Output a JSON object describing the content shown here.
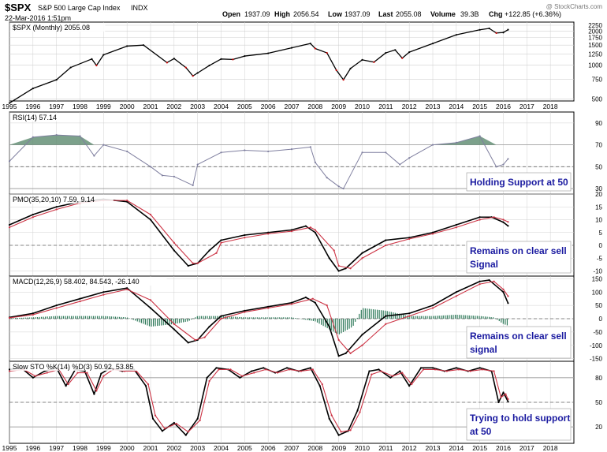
{
  "header": {
    "symbol": "$SPX",
    "name": "S&P 500 Large Cap Index",
    "exchange": "INDX",
    "datetime": "22-Mar-2016 1:51pm",
    "quote": {
      "open_label": "Open",
      "open": "1937.09",
      "high_label": "High",
      "high": "2056.54",
      "low_label": "Low",
      "low": "1937.09",
      "last_label": "Last",
      "last": "2055.08",
      "volume_label": "Volume",
      "volume": "39.3B",
      "chg_label": "Chg",
      "chg": "+122.85 (+6.36%)"
    },
    "watermark": "@ StockCharts.com"
  },
  "x_axis": {
    "years": [
      "1995",
      "1996",
      "1997",
      "1998",
      "1999",
      "2000",
      "2001",
      "2002",
      "2003",
      "2004",
      "2005",
      "2006",
      "2007",
      "2008",
      "2009",
      "2010",
      "2011",
      "2012",
      "2013",
      "2014",
      "2015",
      "2016",
      "2017",
      "2018"
    ]
  },
  "chart_data": [
    {
      "type": "line",
      "title": "$SPX (Monthly) 2055.08",
      "scale": "log",
      "ylim": [
        480,
        2400
      ],
      "yticks": [
        500,
        750,
        1000,
        1250,
        1500,
        1750,
        2000,
        2250
      ],
      "series": [
        {
          "name": "$SPX (Monthly)",
          "x": [
            1995,
            1996,
            1997,
            1997.6,
            1998.5,
            1998.7,
            1999,
            2000,
            2000.7,
            2001.7,
            2002,
            2002.5,
            2002.8,
            2003,
            2003.5,
            2004,
            2004.5,
            2005,
            2006,
            2007,
            2007.8,
            2008,
            2008.5,
            2008.9,
            2009.2,
            2009.5,
            2010,
            2010.5,
            2011,
            2011.4,
            2011.7,
            2012,
            2013,
            2014,
            2015,
            2015.4,
            2015.7,
            2016,
            2016.2
          ],
          "y": [
            460,
            620,
            740,
            950,
            1130,
            990,
            1230,
            1470,
            1500,
            1050,
            1140,
            950,
            800,
            850,
            990,
            1130,
            1120,
            1200,
            1270,
            1420,
            1550,
            1400,
            1280,
            900,
            740,
            930,
            1110,
            1060,
            1280,
            1360,
            1150,
            1300,
            1550,
            1850,
            2050,
            2110,
            1920,
            1940,
            2055
          ]
        }
      ]
    },
    {
      "type": "line",
      "title": "RSI(14) 57.14",
      "ylim": [
        25,
        100
      ],
      "yticks": [
        30,
        50,
        70,
        90
      ],
      "series": [
        {
          "name": "RSI(14)",
          "x": [
            1995,
            1996,
            1997,
            1998,
            1998.6,
            1999,
            2000,
            2001,
            2001.5,
            2002,
            2002.8,
            2003,
            2004,
            2005,
            2006,
            2007,
            2007.8,
            2008,
            2008.5,
            2009,
            2009.2,
            2010,
            2011,
            2011.6,
            2012,
            2013,
            2014,
            2015,
            2015.7,
            2016,
            2016.2
          ],
          "y": [
            55,
            77,
            79,
            78,
            60,
            70,
            64,
            50,
            42,
            41,
            33,
            52,
            63,
            65,
            64,
            66,
            68,
            54,
            40,
            32,
            30,
            63,
            63,
            52,
            58,
            70,
            72,
            78,
            50,
            52,
            57.14
          ]
        }
      ],
      "annotation": "Holding Support at 50"
    },
    {
      "type": "line",
      "title": "PMO(35,20,10) 7.59, 9.14",
      "ylim": [
        -12,
        20
      ],
      "yticks": [
        -10,
        -5,
        0,
        5,
        10,
        15,
        20
      ],
      "series": [
        {
          "name": "PMO(35,20,10) 7.59",
          "x": [
            1995,
            1996,
            1997,
            1998,
            1999,
            2000,
            2001,
            2002,
            2002.6,
            2003,
            2003.5,
            2004,
            2005,
            2006,
            2007,
            2007.6,
            2008,
            2008.6,
            2009,
            2009.3,
            2010,
            2011,
            2012,
            2013,
            2014,
            2015,
            2015.5,
            2016,
            2016.2
          ],
          "y": [
            8,
            12,
            15,
            17,
            18,
            17,
            10,
            -2,
            -8,
            -7,
            -2,
            2,
            4,
            5,
            6,
            7.5,
            5,
            -5,
            -10,
            -9,
            -3,
            2,
            3,
            5,
            8,
            11,
            11,
            9,
            7.59
          ]
        },
        {
          "name": "9.14",
          "x": [
            1995,
            1996,
            1997,
            1998,
            1999,
            2000,
            2001,
            2002,
            2002.8,
            2003,
            2003.8,
            2004,
            2005,
            2006,
            2007,
            2007.8,
            2008,
            2008.8,
            2009,
            2009.5,
            2010,
            2011,
            2012,
            2013,
            2014,
            2015,
            2015.6,
            2016,
            2016.2
          ],
          "y": [
            7,
            11,
            14,
            16.5,
            17.5,
            17.5,
            12,
            1,
            -7,
            -7,
            -3,
            1,
            3,
            4.5,
            5.5,
            7,
            6,
            -2,
            -8,
            -9,
            -5,
            0,
            2.5,
            4.5,
            7,
            10,
            11,
            10,
            9.14
          ]
        }
      ],
      "annotation": "Remains on clear sell Signal"
    },
    {
      "type": "line",
      "title": "MACD(12,26,9) 58.402, 84.543, -26.140",
      "ylim": [
        -160,
        160
      ],
      "yticks": [
        -150,
        -100,
        -50,
        0,
        50,
        100,
        150
      ],
      "series": [
        {
          "name": "MACD(12,26,9) 58.402",
          "x": [
            1995,
            1996,
            1997,
            1998,
            1999,
            2000,
            2001,
            2002,
            2002.6,
            2003,
            2003.5,
            2004,
            2005,
            2006,
            2007,
            2007.6,
            2008,
            2008.6,
            2009,
            2009.3,
            2010,
            2011,
            2012,
            2013,
            2014,
            2015,
            2015.4,
            2016,
            2016.2
          ],
          "y": [
            5,
            20,
            50,
            75,
            100,
            115,
            40,
            -40,
            -90,
            -80,
            -30,
            10,
            30,
            45,
            60,
            80,
            60,
            -30,
            -140,
            -130,
            -60,
            10,
            20,
            50,
            100,
            140,
            145,
            100,
            58.402
          ]
        },
        {
          "name": "84.543",
          "x": [
            1995,
            1996,
            1997,
            1998,
            1999,
            2000,
            2001,
            2002,
            2002.9,
            2003.3,
            2004,
            2005,
            2006,
            2007,
            2007.9,
            2008.5,
            2009,
            2009.5,
            2010,
            2011,
            2012,
            2013,
            2014,
            2015,
            2015.6,
            2016,
            2016.2
          ],
          "y": [
            3,
            15,
            40,
            65,
            90,
            110,
            70,
            -20,
            -80,
            -70,
            0,
            25,
            40,
            55,
            75,
            50,
            -80,
            -130,
            -100,
            -20,
            10,
            40,
            85,
            130,
            140,
            110,
            84.543
          ]
        },
        {
          "name": "-26.140",
          "x": [
            1995,
            1996,
            1997,
            1998,
            1999,
            2000,
            2001,
            2002,
            2002.6,
            2003,
            2004,
            2005,
            2006,
            2007,
            2008,
            2009,
            2009.6,
            2010,
            2011,
            2012,
            2013,
            2014,
            2015,
            2015.6,
            2016,
            2016.2
          ],
          "y": [
            2,
            5,
            10,
            10,
            10,
            5,
            -30,
            -20,
            -10,
            10,
            10,
            5,
            5,
            5,
            -10,
            -60,
            -30,
            40,
            30,
            10,
            10,
            15,
            10,
            5,
            -20,
            -26.14
          ]
        }
      ],
      "annotation": "Remains on clear sell signal"
    },
    {
      "type": "line",
      "title": "Slow STO %K(14) %D(3) 50.92, 53.85",
      "ylim": [
        0,
        100
      ],
      "yticks": [
        20,
        50,
        80
      ],
      "series": [
        {
          "name": "Slow STO %K(14) 50.92",
          "x": [
            1995,
            1995.5,
            1996,
            1996.5,
            1997,
            1997.4,
            1997.8,
            1998.2,
            1998.6,
            1998.9,
            1999.3,
            1999.8,
            2000.3,
            2000.8,
            2001.1,
            2001.5,
            2002,
            2002.5,
            2003,
            2003.4,
            2003.8,
            2004.3,
            2004.8,
            2005.3,
            2005.8,
            2006.3,
            2006.8,
            2007.3,
            2007.8,
            2008.2,
            2008.6,
            2009,
            2009.4,
            2009.8,
            2010.3,
            2010.7,
            2011.2,
            2011.6,
            2012,
            2012.5,
            2013,
            2013.5,
            2014,
            2014.5,
            2015,
            2015.5,
            2015.8,
            2016,
            2016.2
          ],
          "y": [
            90,
            92,
            80,
            88,
            92,
            70,
            90,
            88,
            60,
            85,
            92,
            88,
            90,
            70,
            30,
            15,
            25,
            10,
            30,
            80,
            92,
            90,
            80,
            88,
            92,
            86,
            92,
            88,
            92,
            70,
            30,
            10,
            15,
            40,
            88,
            90,
            80,
            88,
            70,
            92,
            92,
            88,
            92,
            88,
            92,
            88,
            50,
            62,
            50.92
          ]
        },
        {
          "name": "53.85",
          "x": [
            1995,
            1995.6,
            1996.1,
            1996.6,
            1997.1,
            1997.5,
            1997.9,
            1998.3,
            1998.7,
            1999,
            1999.4,
            1999.9,
            2000.4,
            2000.9,
            2001.2,
            2001.6,
            2002.1,
            2002.6,
            2003.1,
            2003.5,
            2003.9,
            2004.4,
            2004.9,
            2005.4,
            2005.9,
            2006.4,
            2006.9,
            2007.4,
            2007.9,
            2008.3,
            2008.7,
            2009.1,
            2009.5,
            2009.9,
            2010.4,
            2010.8,
            2011.3,
            2011.7,
            2012.1,
            2012.6,
            2013.1,
            2013.6,
            2014.1,
            2014.6,
            2015.1,
            2015.6,
            2015.9,
            2016.1,
            2016.2
          ],
          "y": [
            88,
            90,
            82,
            86,
            90,
            72,
            86,
            86,
            64,
            82,
            90,
            88,
            88,
            72,
            34,
            18,
            24,
            14,
            28,
            76,
            90,
            90,
            82,
            86,
            90,
            86,
            90,
            88,
            90,
            72,
            34,
            14,
            16,
            38,
            84,
            88,
            82,
            86,
            72,
            90,
            90,
            88,
            90,
            88,
            90,
            88,
            56,
            60,
            53.85
          ]
        }
      ],
      "annotation": "Trying to hold support at 50"
    }
  ],
  "colors": {
    "price_up": "#000000",
    "price_down": "#cc0000",
    "rsi_line": "#7f7f9f",
    "rsi_fill": "#5b8a6e",
    "signal_line": "#cc3344",
    "histogram": "#2f7a5a",
    "annotation_text": "#1a1aa0",
    "frame": "#000000",
    "gridline": "#d0d0d0"
  }
}
